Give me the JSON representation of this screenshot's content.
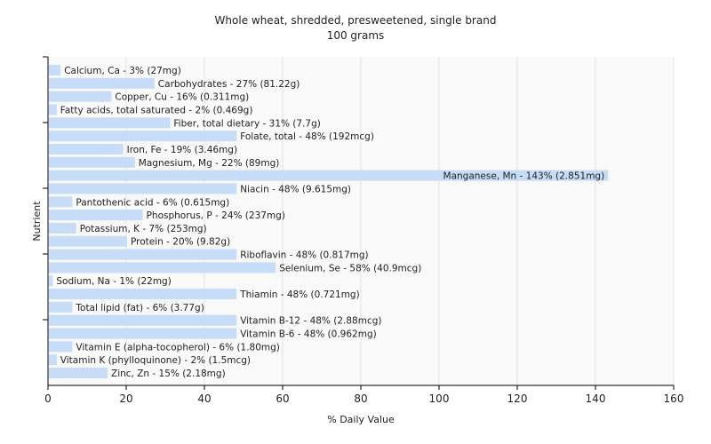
{
  "chart_data": {
    "type": "bar",
    "orientation": "horizontal",
    "title": "Whole wheat, shredded, presweetened, single brand",
    "subtitle": "100 grams",
    "xlabel": "% Daily Value",
    "ylabel": "Nutrient",
    "xlim": [
      0,
      160
    ],
    "xticks": [
      0,
      20,
      40,
      60,
      80,
      100,
      120,
      140,
      160
    ],
    "grid": true,
    "bar_color": "#c6dcf7",
    "bars": [
      {
        "label": "Calcium, Ca - 3% (27mg)",
        "value": 3
      },
      {
        "label": "Carbohydrates - 27% (81.22g)",
        "value": 27
      },
      {
        "label": "Copper, Cu - 16% (0.311mg)",
        "value": 16
      },
      {
        "label": "Fatty acids, total saturated - 2% (0.469g)",
        "value": 2
      },
      {
        "label": "Fiber, total dietary - 31% (7.7g)",
        "value": 31
      },
      {
        "label": "Folate, total - 48% (192mcg)",
        "value": 48
      },
      {
        "label": "Iron, Fe - 19% (3.46mg)",
        "value": 19
      },
      {
        "label": "Magnesium, Mg - 22% (89mg)",
        "value": 22
      },
      {
        "label": "Manganese, Mn - 143% (2.851mg)",
        "value": 143
      },
      {
        "label": "Niacin - 48% (9.615mg)",
        "value": 48
      },
      {
        "label": "Pantothenic acid - 6% (0.615mg)",
        "value": 6
      },
      {
        "label": "Phosphorus, P - 24% (237mg)",
        "value": 24
      },
      {
        "label": "Potassium, K - 7% (253mg)",
        "value": 7
      },
      {
        "label": "Protein - 20% (9.82g)",
        "value": 20
      },
      {
        "label": "Riboflavin - 48% (0.817mg)",
        "value": 48
      },
      {
        "label": "Selenium, Se - 58% (40.9mcg)",
        "value": 58
      },
      {
        "label": "Sodium, Na - 1% (22mg)",
        "value": 1
      },
      {
        "label": "Thiamin - 48% (0.721mg)",
        "value": 48
      },
      {
        "label": "Total lipid (fat) - 6% (3.77g)",
        "value": 6
      },
      {
        "label": "Vitamin B-12 - 48% (2.88mcg)",
        "value": 48
      },
      {
        "label": "Vitamin B-6 - 48% (0.962mg)",
        "value": 48
      },
      {
        "label": "Vitamin E (alpha-tocopherol) - 6% (1.80mg)",
        "value": 6
      },
      {
        "label": "Vitamin K (phylloquinone) - 2% (1.5mcg)",
        "value": 2
      },
      {
        "label": "Zinc, Zn - 15% (2.18mg)",
        "value": 15
      }
    ]
  }
}
